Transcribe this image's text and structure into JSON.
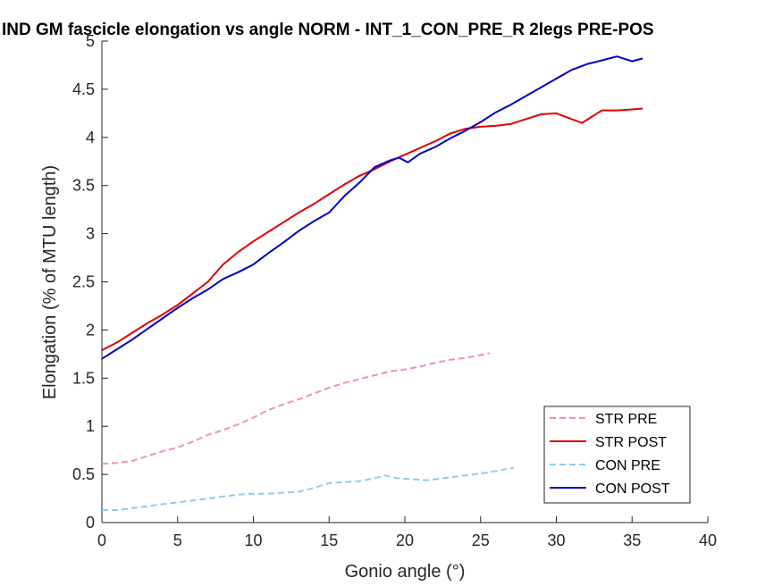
{
  "chart_data": {
    "type": "line",
    "title": "IND GM fascicle elongation vs angle NORM - INT_1_CON_PRE_R 2legs PRE-POS",
    "xlabel": "Gonio angle (°)",
    "ylabel": "Elongation (% of MTU length)",
    "xlim": [
      0,
      40
    ],
    "ylim": [
      0,
      5
    ],
    "xticks": [
      0,
      5,
      10,
      15,
      20,
      25,
      30,
      35,
      40
    ],
    "yticks": [
      0,
      0.5,
      1,
      1.5,
      2,
      2.5,
      3,
      3.5,
      4,
      4.5,
      5
    ],
    "xtick_labels": [
      "0",
      "5",
      "10",
      "15",
      "20",
      "25",
      "30",
      "35",
      "40"
    ],
    "ytick_labels": [
      "0",
      "0.5",
      "1",
      "1.5",
      "2",
      "2.5",
      "3",
      "3.5",
      "4",
      "4.5",
      "5"
    ],
    "grid": false,
    "legend_position": "bottom-right",
    "series": [
      {
        "name": "STR PRE",
        "color": "#f48fb1",
        "style": "dashed",
        "x": [
          0,
          1,
          2,
          3,
          4,
          5,
          6,
          7,
          8,
          9,
          10,
          11,
          12,
          13,
          14,
          15,
          16,
          17,
          18,
          19,
          20,
          21,
          22,
          23,
          24,
          25,
          25.6
        ],
        "y": [
          0.61,
          0.62,
          0.64,
          0.69,
          0.74,
          0.78,
          0.84,
          0.91,
          0.96,
          1.02,
          1.09,
          1.17,
          1.23,
          1.28,
          1.34,
          1.4,
          1.45,
          1.49,
          1.53,
          1.57,
          1.59,
          1.62,
          1.66,
          1.69,
          1.71,
          1.74,
          1.76
        ]
      },
      {
        "name": "STR POST",
        "color": "#e00000",
        "style": "solid",
        "x": [
          0,
          1,
          2,
          3,
          4,
          5,
          6,
          7,
          8,
          9,
          10,
          11,
          12,
          13,
          14,
          15,
          16,
          17,
          18,
          19,
          20,
          21,
          22,
          23,
          24,
          25,
          26,
          27,
          28,
          29,
          30,
          31,
          31.7,
          32.5,
          33,
          34,
          35,
          35.7
        ],
        "y": [
          1.79,
          1.87,
          1.97,
          2.07,
          2.16,
          2.26,
          2.38,
          2.5,
          2.68,
          2.81,
          2.92,
          3.02,
          3.12,
          3.22,
          3.31,
          3.41,
          3.51,
          3.6,
          3.67,
          3.75,
          3.82,
          3.89,
          3.96,
          4.04,
          4.09,
          4.11,
          4.12,
          4.14,
          4.19,
          4.24,
          4.25,
          4.19,
          4.15,
          4.23,
          4.28,
          4.28,
          4.29,
          4.3
        ]
      },
      {
        "name": "CON PRE",
        "color": "#8ec9f5",
        "style": "dashed",
        "x": [
          0,
          1,
          2,
          3,
          4,
          5,
          6,
          7,
          8,
          9,
          10,
          11,
          12,
          13,
          14,
          15,
          16,
          17,
          18,
          18.7,
          19.5,
          20.5,
          21.5,
          22.5,
          23.5,
          24.5,
          25.5,
          26.5,
          27.2
        ],
        "y": [
          0.13,
          0.13,
          0.15,
          0.17,
          0.19,
          0.21,
          0.23,
          0.25,
          0.27,
          0.29,
          0.3,
          0.3,
          0.31,
          0.32,
          0.36,
          0.41,
          0.42,
          0.43,
          0.46,
          0.49,
          0.46,
          0.45,
          0.44,
          0.46,
          0.48,
          0.5,
          0.52,
          0.55,
          0.57
        ]
      },
      {
        "name": "CON POST",
        "color": "#0000c8",
        "style": "solid",
        "x": [
          0,
          1,
          2,
          3,
          4,
          5,
          6,
          7,
          8,
          9,
          10,
          11,
          12,
          13,
          14,
          15,
          16,
          17,
          18,
          19,
          19.6,
          20.2,
          21,
          22,
          23,
          24,
          25,
          26,
          27,
          28,
          29,
          30,
          31,
          32,
          33,
          34,
          35,
          35.7
        ],
        "y": [
          1.7,
          1.8,
          1.9,
          2.01,
          2.12,
          2.23,
          2.33,
          2.42,
          2.53,
          2.6,
          2.68,
          2.8,
          2.91,
          3.03,
          3.13,
          3.22,
          3.39,
          3.53,
          3.69,
          3.76,
          3.79,
          3.74,
          3.83,
          3.9,
          3.99,
          4.07,
          4.16,
          4.26,
          4.34,
          4.43,
          4.52,
          4.61,
          4.7,
          4.76,
          4.8,
          4.84,
          4.79,
          4.82
        ]
      }
    ]
  }
}
